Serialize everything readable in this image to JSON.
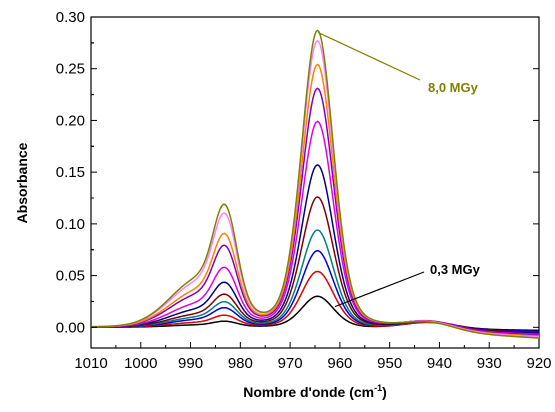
{
  "chart_data": {
    "type": "line",
    "title": "",
    "xlabel": "Nombre d'onde (cm",
    "xlabel_sup": "-1",
    "xlabel_close": ")",
    "ylabel": "Absorbance",
    "xlim": [
      1010,
      920
    ],
    "ylim": [
      -0.02,
      0.3
    ],
    "x_reversed": true,
    "x_ticks": [
      "1010",
      "1000",
      "990",
      "980",
      "970",
      "960",
      "950",
      "940",
      "930",
      "920"
    ],
    "y_ticks": [
      "0.00",
      "0.05",
      "0.10",
      "0.15",
      "0.20",
      "0.25",
      "0.30"
    ],
    "grid": false,
    "legend": "none",
    "annotations": [
      {
        "text": "8,0 MGy",
        "color": "#808000",
        "points_to": {
          "x": 965,
          "y": 0.287
        }
      },
      {
        "text": "0,3 MGy",
        "color": "#000000",
        "points_to": {
          "x": 961,
          "y": 0.02
        }
      }
    ],
    "series": [
      {
        "color": "#000000",
        "peak": 0.03,
        "shoulder": 0.004,
        "tail940": 0.006,
        "end920": -0.003
      },
      {
        "color": "#e00000",
        "peak": 0.054,
        "shoulder": 0.008,
        "tail940": 0.006,
        "end920": -0.004
      },
      {
        "color": "#0000e0",
        "peak": 0.074,
        "shoulder": 0.013,
        "tail940": 0.007,
        "end920": -0.004
      },
      {
        "color": "#008080",
        "peak": 0.094,
        "shoulder": 0.017,
        "tail940": 0.007,
        "end920": -0.005
      },
      {
        "color": "#800000",
        "peak": 0.126,
        "shoulder": 0.022,
        "tail940": 0.007,
        "end920": -0.005
      },
      {
        "color": "#000080",
        "peak": 0.157,
        "shoulder": 0.03,
        "tail940": 0.007,
        "end920": -0.006
      },
      {
        "color": "#e000e0",
        "peak": 0.199,
        "shoulder": 0.04,
        "tail940": 0.008,
        "end920": -0.007
      },
      {
        "color": "#8000c0",
        "peak": 0.231,
        "shoulder": 0.055,
        "tail940": 0.008,
        "end920": -0.008
      },
      {
        "color": "#ff8000",
        "peak": 0.254,
        "shoulder": 0.063,
        "tail940": 0.008,
        "end920": -0.009
      },
      {
        "color": "#ff80ff",
        "peak": 0.277,
        "shoulder": 0.077,
        "tail940": 0.008,
        "end920": -0.01
      },
      {
        "color": "#808000",
        "peak": 0.287,
        "shoulder": 0.083,
        "tail940": 0.008,
        "end920": -0.011
      }
    ]
  }
}
